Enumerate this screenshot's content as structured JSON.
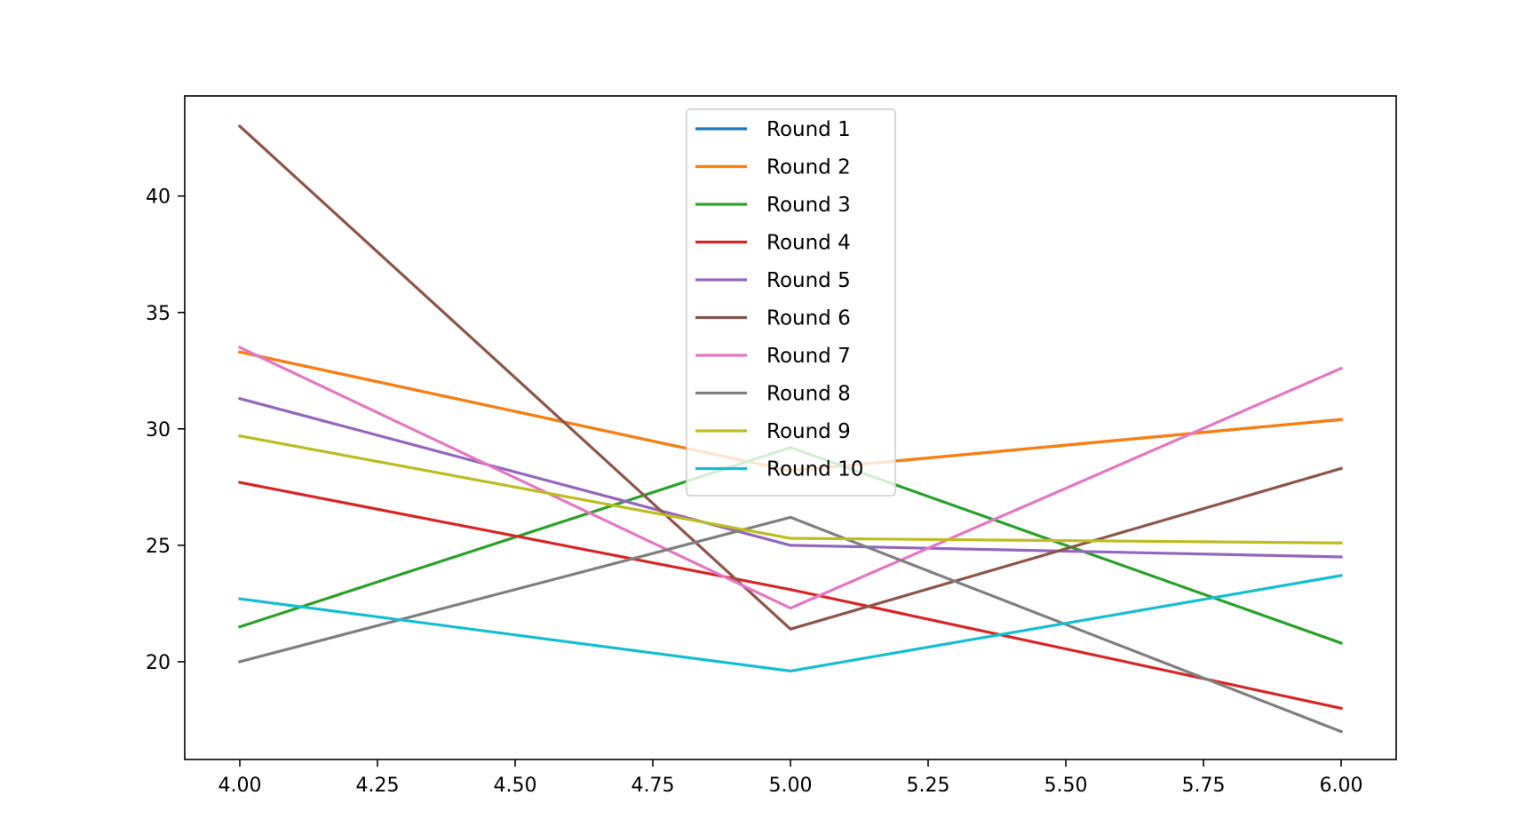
{
  "chart_data": {
    "type": "line",
    "title": "",
    "xlabel": "",
    "ylabel": "",
    "xlim": [
      3.9,
      6.1
    ],
    "ylim": [
      15.8,
      44.3
    ],
    "xticks": [
      4.0,
      4.25,
      4.5,
      4.75,
      5.0,
      5.25,
      5.5,
      5.75,
      6.0
    ],
    "xtick_labels": [
      "4.00",
      "4.25",
      "4.50",
      "4.75",
      "5.00",
      "5.25",
      "5.50",
      "5.75",
      "6.00"
    ],
    "yticks": [
      20,
      25,
      30,
      35,
      40
    ],
    "ytick_labels": [
      "20",
      "25",
      "30",
      "35",
      "40"
    ],
    "grid": false,
    "legend_position": "upper-center",
    "x": [
      4,
      5,
      6
    ],
    "series": [
      {
        "name": "Round 1",
        "color": "#1f77b4",
        "values": [
          33.3,
          28.2,
          30.4
        ]
      },
      {
        "name": "Round 2",
        "color": "#ff7f0e",
        "values": [
          33.3,
          28.2,
          30.4
        ]
      },
      {
        "name": "Round 3",
        "color": "#2ca02c",
        "values": [
          21.5,
          29.2,
          20.8
        ]
      },
      {
        "name": "Round 4",
        "color": "#d62728",
        "values": [
          27.7,
          23.1,
          18.0
        ]
      },
      {
        "name": "Round 5",
        "color": "#9467bd",
        "values": [
          31.3,
          25.0,
          24.5
        ]
      },
      {
        "name": "Round 6",
        "color": "#8c564b",
        "values": [
          43.0,
          21.4,
          28.3
        ]
      },
      {
        "name": "Round 7",
        "color": "#e377c2",
        "values": [
          33.5,
          22.3,
          32.6
        ]
      },
      {
        "name": "Round 8",
        "color": "#7f7f7f",
        "values": [
          20.0,
          26.2,
          17.0
        ]
      },
      {
        "name": "Round 9",
        "color": "#bcbd22",
        "values": [
          29.7,
          25.3,
          25.1
        ]
      },
      {
        "name": "Round 10",
        "color": "#17becf",
        "values": [
          22.7,
          19.6,
          23.7
        ]
      }
    ]
  }
}
